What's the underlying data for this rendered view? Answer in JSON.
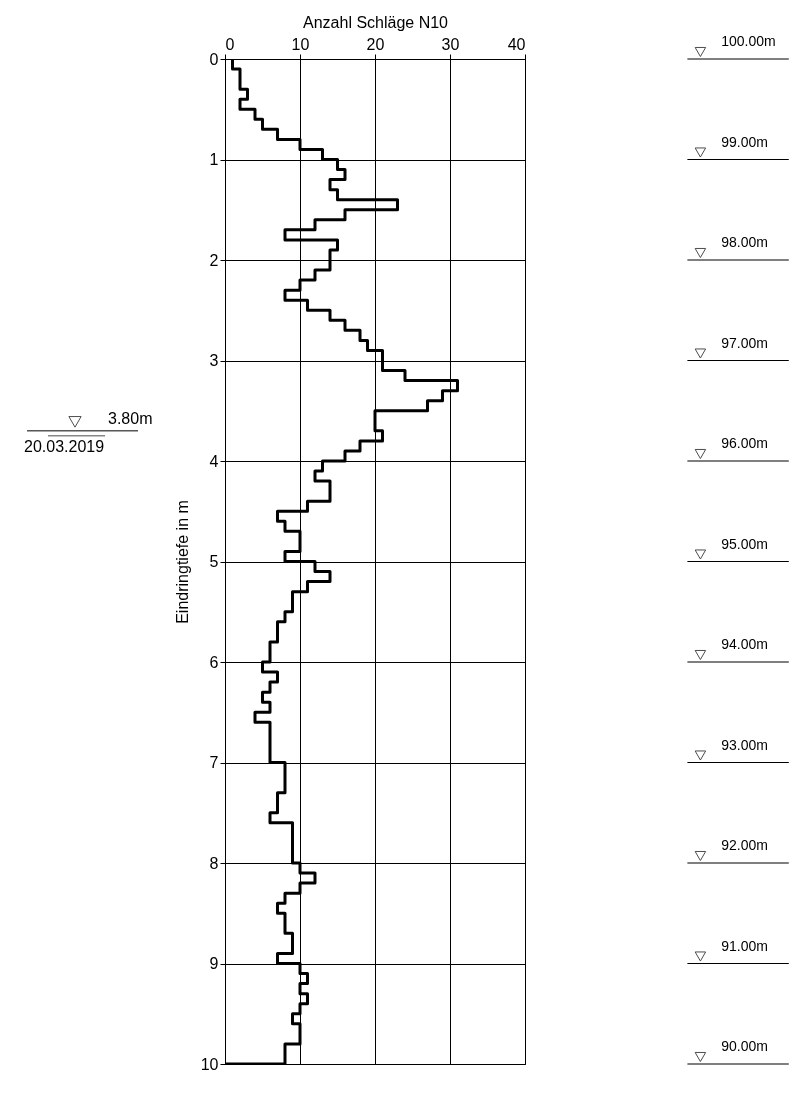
{
  "chart_data": {
    "type": "step",
    "orientation": "horizontal",
    "x2label": "Anzahl Schläge N10",
    "ylabel": "Eindringtiefe in m",
    "x2lim": [
      0,
      40
    ],
    "x2ticks": [
      0,
      10,
      20,
      30,
      40
    ],
    "ylim": [
      10,
      0
    ],
    "yticks": [
      0,
      1,
      2,
      3,
      4,
      5,
      6,
      7,
      8,
      9,
      10
    ],
    "y2lim": [
      90,
      100
    ],
    "y2ticks": [
      {
        "value": 100,
        "label": "100.00m"
      },
      {
        "value": 99,
        "label": "99.00m"
      },
      {
        "value": 98,
        "label": "98.00m"
      },
      {
        "value": 97,
        "label": "97.00m"
      },
      {
        "value": 96,
        "label": "96.00m"
      },
      {
        "value": 95,
        "label": "95.00m"
      },
      {
        "value": 94,
        "label": "94.00m"
      },
      {
        "value": 93,
        "label": "93.00m"
      },
      {
        "value": 92,
        "label": "92.00m"
      },
      {
        "value": 91,
        "label": "91.00m"
      },
      {
        "value": 90,
        "label": "90.00m"
      }
    ],
    "grid": true,
    "x": [
      0,
      0.1,
      0.2,
      0.3,
      0.4,
      0.5,
      0.6,
      0.7,
      0.8,
      0.9,
      1,
      1.1,
      1.2,
      1.3,
      1.4,
      1.5,
      1.6,
      1.7,
      1.8,
      1.9,
      2,
      2.1,
      2.2,
      2.3,
      2.4,
      2.5,
      2.6,
      2.7,
      2.8,
      2.9,
      3,
      3.1,
      3.2,
      3.3,
      3.4,
      3.5,
      3.6,
      3.7,
      3.8,
      3.9,
      4,
      4.1,
      4.2,
      4.3,
      4.4,
      4.5,
      4.6,
      4.7,
      4.8,
      4.9,
      5,
      5.1,
      5.2,
      5.3,
      5.4,
      5.5,
      5.6,
      5.7,
      5.8,
      5.9,
      6,
      6.1,
      6.2,
      6.3,
      6.4,
      6.5,
      6.6,
      6.7,
      6.8,
      6.9,
      7,
      7.1,
      7.2,
      7.3,
      7.4,
      7.5,
      7.6,
      7.7,
      7.8,
      7.9,
      8,
      8.1,
      8.2,
      8.3,
      8.4,
      8.5,
      8.6,
      8.7,
      8.8,
      8.9,
      9,
      9.1,
      9.2,
      9.3,
      9.4,
      9.5,
      9.6,
      9.7,
      9.8,
      9.9,
      10
    ],
    "series": [
      {
        "color": "#000000",
        "axis": "x2",
        "values": [
          1,
          2,
          2,
          3,
          2,
          4,
          5,
          7,
          10,
          13,
          15,
          16,
          14,
          15,
          23,
          16,
          12,
          8,
          15,
          14,
          14,
          12,
          10,
          8,
          11,
          14,
          16,
          18,
          19,
          21,
          21,
          24,
          31,
          29,
          27,
          20,
          20,
          21,
          18,
          16,
          13,
          12,
          14,
          14,
          11,
          7,
          8,
          10,
          10,
          8,
          12,
          14,
          11,
          9,
          9,
          8,
          7,
          7,
          6,
          6,
          5,
          7,
          6,
          5,
          6,
          4,
          6,
          6,
          6,
          6,
          8,
          8,
          8,
          7,
          7,
          6,
          9,
          9,
          9,
          9,
          10,
          12,
          10,
          8,
          7,
          8,
          8,
          9,
          9,
          7,
          10,
          11,
          10,
          11,
          10,
          9,
          10,
          10,
          8,
          8,
          0
        ]
      }
    ],
    "annotations": [
      "3.80m",
      "20.03.2019"
    ]
  }
}
